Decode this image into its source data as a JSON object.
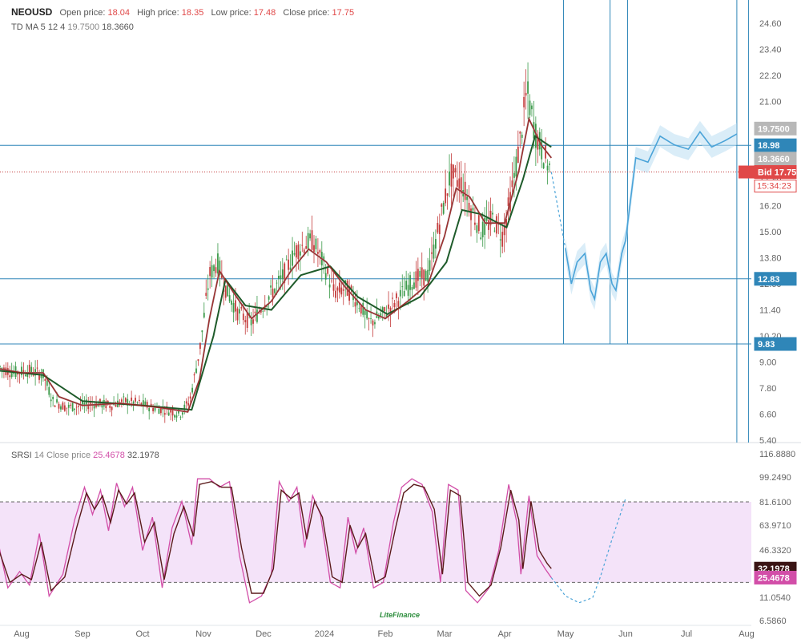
{
  "header": {
    "symbol": "NEOUSD",
    "open_label": "Open price:",
    "open": "18.04",
    "high_label": "High price:",
    "high": "18.35",
    "low_label": "Low price:",
    "low": "17.48",
    "close_label": "Close price:",
    "close": "17.75",
    "ma_label": "TD MA 5 12 4",
    "ma_v1": "19.7500",
    "ma_v2": "18.3660"
  },
  "srsi_header": {
    "label": "SRSI",
    "params": "14 Close price",
    "v1": "25.4678",
    "v2": "32.1978"
  },
  "watermark": "LiteFinance",
  "colors": {
    "up": "#3c9a4a",
    "down": "#c43c3c",
    "ma_fast": "#9b1c1c",
    "ma_slow": "#1e5b2a",
    "ma_gray": "#a8a8a8",
    "level": "#2f86b8",
    "projection": "#4aa3d8",
    "srsi_k": "#d24ea8",
    "srsi_d": "#5a1a1a",
    "srsi_band": "#f0d9f7"
  },
  "chart_data": [
    {
      "type": "candlestick",
      "title": "NEOUSD",
      "x_ticks": [
        "Aug",
        "Sep",
        "Oct",
        "Nov",
        "Dec",
        "2024",
        "Feb",
        "Mar",
        "Apr",
        "May",
        "Jun",
        "Jul",
        "Aug"
      ],
      "y_ticks": [
        5.4,
        6.6,
        7.8,
        9.0,
        10.2,
        11.4,
        12.6,
        13.8,
        15.0,
        16.2,
        17.4,
        18.6,
        19.8,
        21.0,
        22.2,
        23.4,
        24.6
      ],
      "ylim": [
        5.4,
        25.2
      ],
      "horizontal_levels": [
        18.98,
        12.83,
        9.83
      ],
      "bid": 17.75,
      "bid_label": "Bid 17.75",
      "countdown": "15:34:23",
      "price_tags": [
        {
          "text": "19.7500",
          "value": 19.75,
          "kind": "ma"
        },
        {
          "text": "18.98",
          "value": 18.98,
          "kind": "level"
        },
        {
          "text": "18.3660",
          "value": 18.366,
          "kind": "ma"
        },
        {
          "text": "12.83",
          "value": 12.83,
          "kind": "level"
        },
        {
          "text": "9.83",
          "value": 9.83,
          "kind": "level"
        }
      ],
      "price_path": [
        [
          "2023-07-20",
          8.8
        ],
        [
          "2023-07-28",
          8.5
        ],
        [
          "2023-08-05",
          8.6
        ],
        [
          "2023-08-12",
          8.4
        ],
        [
          "2023-08-17",
          7.2
        ],
        [
          "2023-08-24",
          6.9
        ],
        [
          "2023-09-01",
          7.0
        ],
        [
          "2023-09-08",
          7.1
        ],
        [
          "2023-09-15",
          7.0
        ],
        [
          "2023-09-22",
          7.2
        ],
        [
          "2023-09-29",
          7.1
        ],
        [
          "2023-10-06",
          6.9
        ],
        [
          "2023-10-13",
          6.8
        ],
        [
          "2023-10-20",
          6.6
        ],
        [
          "2023-10-25",
          7.2
        ],
        [
          "2023-10-30",
          9.5
        ],
        [
          "2023-11-04",
          13.0
        ],
        [
          "2023-11-08",
          13.6
        ],
        [
          "2023-11-12",
          12.4
        ],
        [
          "2023-11-18",
          11.3
        ],
        [
          "2023-11-25",
          10.8
        ],
        [
          "2023-12-02",
          11.8
        ],
        [
          "2023-12-10",
          12.8
        ],
        [
          "2023-12-18",
          14.2
        ],
        [
          "2023-12-26",
          14.6
        ],
        [
          "2024-01-01",
          13.4
        ],
        [
          "2024-01-06",
          12.2
        ],
        [
          "2024-01-12",
          12.4
        ],
        [
          "2024-01-18",
          11.8
        ],
        [
          "2024-01-24",
          10.8
        ],
        [
          "2024-01-31",
          11.2
        ],
        [
          "2024-02-08",
          12.0
        ],
        [
          "2024-02-15",
          12.8
        ],
        [
          "2024-02-22",
          13.0
        ],
        [
          "2024-02-28",
          15.6
        ],
        [
          "2024-03-04",
          17.6
        ],
        [
          "2024-03-10",
          17.2
        ],
        [
          "2024-03-15",
          16.0
        ],
        [
          "2024-03-20",
          15.0
        ],
        [
          "2024-03-26",
          15.6
        ],
        [
          "2024-03-31",
          14.8
        ],
        [
          "2024-04-04",
          16.6
        ],
        [
          "2024-04-08",
          18.8
        ],
        [
          "2024-04-12",
          21.5
        ],
        [
          "2024-04-16",
          19.6
        ],
        [
          "2024-04-20",
          18.6
        ],
        [
          "2024-04-24",
          17.75
        ]
      ],
      "fast_ma": [
        [
          "2023-07-20",
          8.7
        ],
        [
          "2023-08-01",
          8.5
        ],
        [
          "2023-08-12",
          8.5
        ],
        [
          "2023-08-20",
          7.4
        ],
        [
          "2023-09-01",
          7.0
        ],
        [
          "2023-09-20",
          7.1
        ],
        [
          "2023-10-10",
          6.9
        ],
        [
          "2023-10-24",
          6.7
        ],
        [
          "2023-10-30",
          8.2
        ],
        [
          "2023-11-04",
          11.0
        ],
        [
          "2023-11-09",
          13.2
        ],
        [
          "2023-11-16",
          12.2
        ],
        [
          "2023-11-25",
          11.0
        ],
        [
          "2023-12-05",
          11.8
        ],
        [
          "2023-12-15",
          13.2
        ],
        [
          "2023-12-24",
          14.2
        ],
        [
          "2024-01-02",
          13.6
        ],
        [
          "2024-01-12",
          12.4
        ],
        [
          "2024-01-22",
          11.4
        ],
        [
          "2024-02-01",
          11.0
        ],
        [
          "2024-02-12",
          11.8
        ],
        [
          "2024-02-22",
          12.6
        ],
        [
          "2024-03-01",
          14.8
        ],
        [
          "2024-03-07",
          17.0
        ],
        [
          "2024-03-14",
          16.6
        ],
        [
          "2024-03-22",
          15.4
        ],
        [
          "2024-04-01",
          15.4
        ],
        [
          "2024-04-08",
          17.8
        ],
        [
          "2024-04-13",
          20.2
        ],
        [
          "2024-04-19",
          19.0
        ],
        [
          "2024-04-24",
          18.4
        ]
      ],
      "slow_ma": [
        [
          "2023-07-20",
          8.6
        ],
        [
          "2023-08-12",
          8.4
        ],
        [
          "2023-09-01",
          7.2
        ],
        [
          "2023-10-01",
          7.0
        ],
        [
          "2023-10-26",
          6.8
        ],
        [
          "2023-11-06",
          10.2
        ],
        [
          "2023-11-12",
          12.8
        ],
        [
          "2023-11-22",
          11.6
        ],
        [
          "2023-12-05",
          11.4
        ],
        [
          "2023-12-20",
          13.0
        ],
        [
          "2024-01-04",
          13.4
        ],
        [
          "2024-01-18",
          12.0
        ],
        [
          "2024-02-02",
          11.2
        ],
        [
          "2024-02-18",
          12.0
        ],
        [
          "2024-03-02",
          13.6
        ],
        [
          "2024-03-10",
          16.0
        ],
        [
          "2024-03-20",
          15.8
        ],
        [
          "2024-04-02",
          15.2
        ],
        [
          "2024-04-10",
          17.4
        ],
        [
          "2024-04-16",
          19.4
        ],
        [
          "2024-04-24",
          18.9
        ]
      ],
      "projection_path": [
        [
          "2024-04-24",
          17.75
        ],
        [
          "2024-05-01",
          14.2
        ],
        [
          "2024-05-04",
          12.6
        ],
        [
          "2024-05-07",
          13.6
        ],
        [
          "2024-05-11",
          14.0
        ],
        [
          "2024-05-14",
          12.3
        ],
        [
          "2024-05-16",
          11.9
        ],
        [
          "2024-05-19",
          13.6
        ],
        [
          "2024-05-22",
          14.0
        ],
        [
          "2024-05-25",
          12.6
        ],
        [
          "2024-05-27",
          12.3
        ],
        [
          "2024-05-30",
          14.0
        ],
        [
          "2024-06-01",
          14.6
        ],
        [
          "2024-06-06",
          18.4
        ],
        [
          "2024-06-12",
          18.2
        ],
        [
          "2024-06-18",
          19.4
        ],
        [
          "2024-06-25",
          19.0
        ],
        [
          "2024-07-02",
          18.8
        ],
        [
          "2024-07-08",
          19.6
        ],
        [
          "2024-07-14",
          18.9
        ],
        [
          "2024-07-21",
          19.2
        ],
        [
          "2024-07-27",
          19.5
        ]
      ],
      "vertical_lines": [
        "2024-04-30",
        "2024-05-24",
        "2024-06-02",
        "2024-07-27",
        "2024-08-02"
      ]
    },
    {
      "type": "line",
      "title": "SRSI 14 Close price",
      "y_ticks": [
        6.586,
        11.054,
        28.69,
        46.332,
        63.971,
        81.61,
        99.249,
        116.888
      ],
      "y_tick_labels": [
        "6.5860",
        "11.0540",
        "28.6900",
        "46.3320",
        "63.9710",
        "81.6100",
        "99.2490",
        "116.8880"
      ],
      "ylim": [
        5.5,
        118
      ],
      "band": [
        22,
        81.61
      ],
      "price_tags": [
        {
          "text": "32.1978",
          "value": 32.1978,
          "kind": "d"
        },
        {
          "text": "25.4678",
          "value": 25.4678,
          "kind": "k"
        }
      ],
      "series": [
        {
          "name": "",
          "values": [
            [
              "2023-07-20",
              52
            ],
            [
              "2023-07-25",
              18
            ],
            [
              "2023-07-31",
              30
            ],
            [
              "2023-08-05",
              20
            ],
            [
              "2023-08-10",
              58
            ],
            [
              "2023-08-15",
              12
            ],
            [
              "2023-08-22",
              28
            ],
            [
              "2023-08-28",
              68
            ],
            [
              "2023-09-02",
              92
            ],
            [
              "2023-09-06",
              72
            ],
            [
              "2023-09-10",
              90
            ],
            [
              "2023-09-14",
              60
            ],
            [
              "2023-09-18",
              95
            ],
            [
              "2023-09-22",
              78
            ],
            [
              "2023-09-26",
              92
            ],
            [
              "2023-10-01",
              46
            ],
            [
              "2023-10-06",
              70
            ],
            [
              "2023-10-11",
              18
            ],
            [
              "2023-10-16",
              62
            ],
            [
              "2023-10-21",
              82
            ],
            [
              "2023-10-26",
              50
            ],
            [
              "2023-10-29",
              98
            ],
            [
              "2023-11-04",
              98
            ],
            [
              "2023-11-09",
              92
            ],
            [
              "2023-11-14",
              96
            ],
            [
              "2023-11-19",
              42
            ],
            [
              "2023-11-24",
              10
            ],
            [
              "2023-11-30",
              12
            ],
            [
              "2023-12-05",
              28
            ],
            [
              "2023-12-09",
              96
            ],
            [
              "2023-12-14",
              82
            ],
            [
              "2023-12-18",
              92
            ],
            [
              "2023-12-22",
              48
            ],
            [
              "2023-12-26",
              86
            ],
            [
              "2023-12-30",
              72
            ],
            [
              "2024-01-04",
              22
            ],
            [
              "2024-01-09",
              18
            ],
            [
              "2024-01-13",
              70
            ],
            [
              "2024-01-17",
              44
            ],
            [
              "2024-01-21",
              62
            ],
            [
              "2024-01-26",
              18
            ],
            [
              "2024-01-31",
              22
            ],
            [
              "2024-02-05",
              66
            ],
            [
              "2024-02-09",
              92
            ],
            [
              "2024-02-14",
              98
            ],
            [
              "2024-02-19",
              94
            ],
            [
              "2024-02-24",
              74
            ],
            [
              "2024-02-28",
              22
            ],
            [
              "2024-03-03",
              94
            ],
            [
              "2024-03-08",
              90
            ],
            [
              "2024-03-12",
              16
            ],
            [
              "2024-03-18",
              10
            ],
            [
              "2024-03-24",
              18
            ],
            [
              "2024-03-29",
              46
            ],
            [
              "2024-04-03",
              94
            ],
            [
              "2024-04-07",
              66
            ],
            [
              "2024-04-09",
              28
            ],
            [
              "2024-04-13",
              86
            ],
            [
              "2024-04-17",
              42
            ],
            [
              "2024-04-21",
              32
            ],
            [
              "2024-04-24",
              25.47
            ]
          ]
        },
        {
          "name": "",
          "values": [
            [
              "2023-07-20",
              48
            ],
            [
              "2023-07-26",
              22
            ],
            [
              "2023-08-01",
              28
            ],
            [
              "2023-08-06",
              24
            ],
            [
              "2023-08-11",
              52
            ],
            [
              "2023-08-16",
              16
            ],
            [
              "2023-08-23",
              26
            ],
            [
              "2023-08-29",
              62
            ],
            [
              "2023-09-03",
              88
            ],
            [
              "2023-09-07",
              76
            ],
            [
              "2023-09-11",
              86
            ],
            [
              "2023-09-15",
              66
            ],
            [
              "2023-09-19",
              90
            ],
            [
              "2023-09-23",
              80
            ],
            [
              "2023-09-27",
              88
            ],
            [
              "2023-10-02",
              52
            ],
            [
              "2023-10-07",
              66
            ],
            [
              "2023-10-12",
              24
            ],
            [
              "2023-10-17",
              58
            ],
            [
              "2023-10-22",
              78
            ],
            [
              "2023-10-27",
              56
            ],
            [
              "2023-10-30",
              94
            ],
            [
              "2023-11-05",
              96
            ],
            [
              "2023-11-10",
              92
            ],
            [
              "2023-11-15",
              92
            ],
            [
              "2023-11-20",
              48
            ],
            [
              "2023-11-25",
              14
            ],
            [
              "2023-12-01",
              14
            ],
            [
              "2023-12-06",
              32
            ],
            [
              "2023-12-10",
              90
            ],
            [
              "2023-12-15",
              84
            ],
            [
              "2023-12-19",
              88
            ],
            [
              "2023-12-23",
              54
            ],
            [
              "2023-12-27",
              82
            ],
            [
              "2023-12-31",
              70
            ],
            [
              "2024-01-05",
              26
            ],
            [
              "2024-01-10",
              22
            ],
            [
              "2024-01-14",
              64
            ],
            [
              "2024-01-18",
              48
            ],
            [
              "2024-01-22",
              58
            ],
            [
              "2024-01-27",
              22
            ],
            [
              "2024-02-01",
              26
            ],
            [
              "2024-02-06",
              62
            ],
            [
              "2024-02-10",
              88
            ],
            [
              "2024-02-15",
              94
            ],
            [
              "2024-02-20",
              92
            ],
            [
              "2024-02-25",
              76
            ],
            [
              "2024-02-29",
              28
            ],
            [
              "2024-03-04",
              90
            ],
            [
              "2024-03-09",
              86
            ],
            [
              "2024-03-13",
              22
            ],
            [
              "2024-03-19",
              12
            ],
            [
              "2024-03-25",
              20
            ],
            [
              "2024-03-30",
              48
            ],
            [
              "2024-04-04",
              90
            ],
            [
              "2024-04-08",
              68
            ],
            [
              "2024-04-10",
              32
            ],
            [
              "2024-04-14",
              82
            ],
            [
              "2024-04-18",
              46
            ],
            [
              "2024-04-22",
              36
            ],
            [
              "2024-04-24",
              32.2
            ]
          ]
        }
      ],
      "projection_path": [
        [
          "2024-04-24",
          25.47
        ],
        [
          "2024-05-01",
          12
        ],
        [
          "2024-05-08",
          10
        ],
        [
          "2024-05-15",
          11
        ],
        [
          "2024-05-19",
          26
        ],
        [
          "2024-05-25",
          54
        ],
        [
          "2024-06-01",
          84
        ]
      ]
    }
  ]
}
